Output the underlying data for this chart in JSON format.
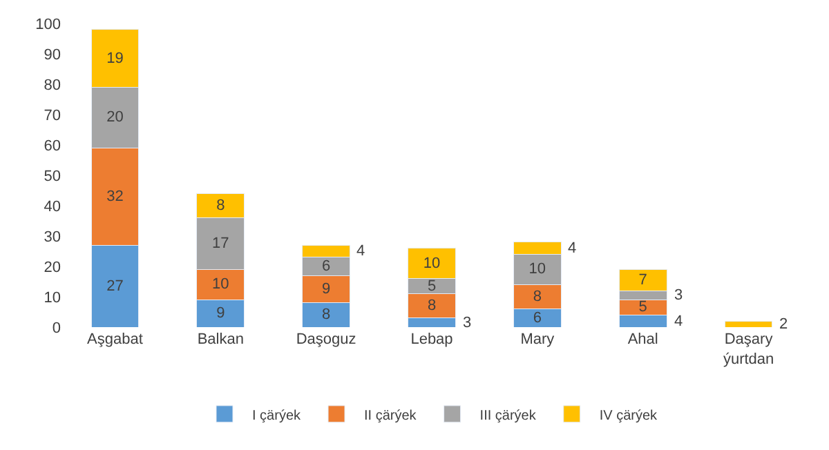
{
  "chart_data": {
    "type": "bar",
    "stacked": true,
    "categories": [
      "Aşgabat",
      "Balkan",
      "Daşoguz",
      "Lebap",
      "Mary",
      "Ahal",
      "Daşary ýurtdan"
    ],
    "series": [
      {
        "name": "I çärýek",
        "color": "#5b9bd5",
        "values": [
          27,
          9,
          8,
          3,
          6,
          4,
          null
        ]
      },
      {
        "name": "II çärýek",
        "color": "#ed7d31",
        "values": [
          32,
          10,
          9,
          8,
          8,
          5,
          null
        ]
      },
      {
        "name": "III çärýek",
        "color": "#a5a5a5",
        "values": [
          20,
          17,
          6,
          5,
          10,
          3,
          null
        ]
      },
      {
        "name": "IV çärýek",
        "color": "#ffc000",
        "values": [
          19,
          8,
          4,
          10,
          4,
          7,
          2
        ]
      }
    ],
    "ylim": [
      0,
      100
    ],
    "yticks": [
      0,
      10,
      20,
      30,
      40,
      50,
      60,
      70,
      80,
      90,
      100
    ],
    "grid": false,
    "legend": "bottom",
    "data_labels": true
  }
}
